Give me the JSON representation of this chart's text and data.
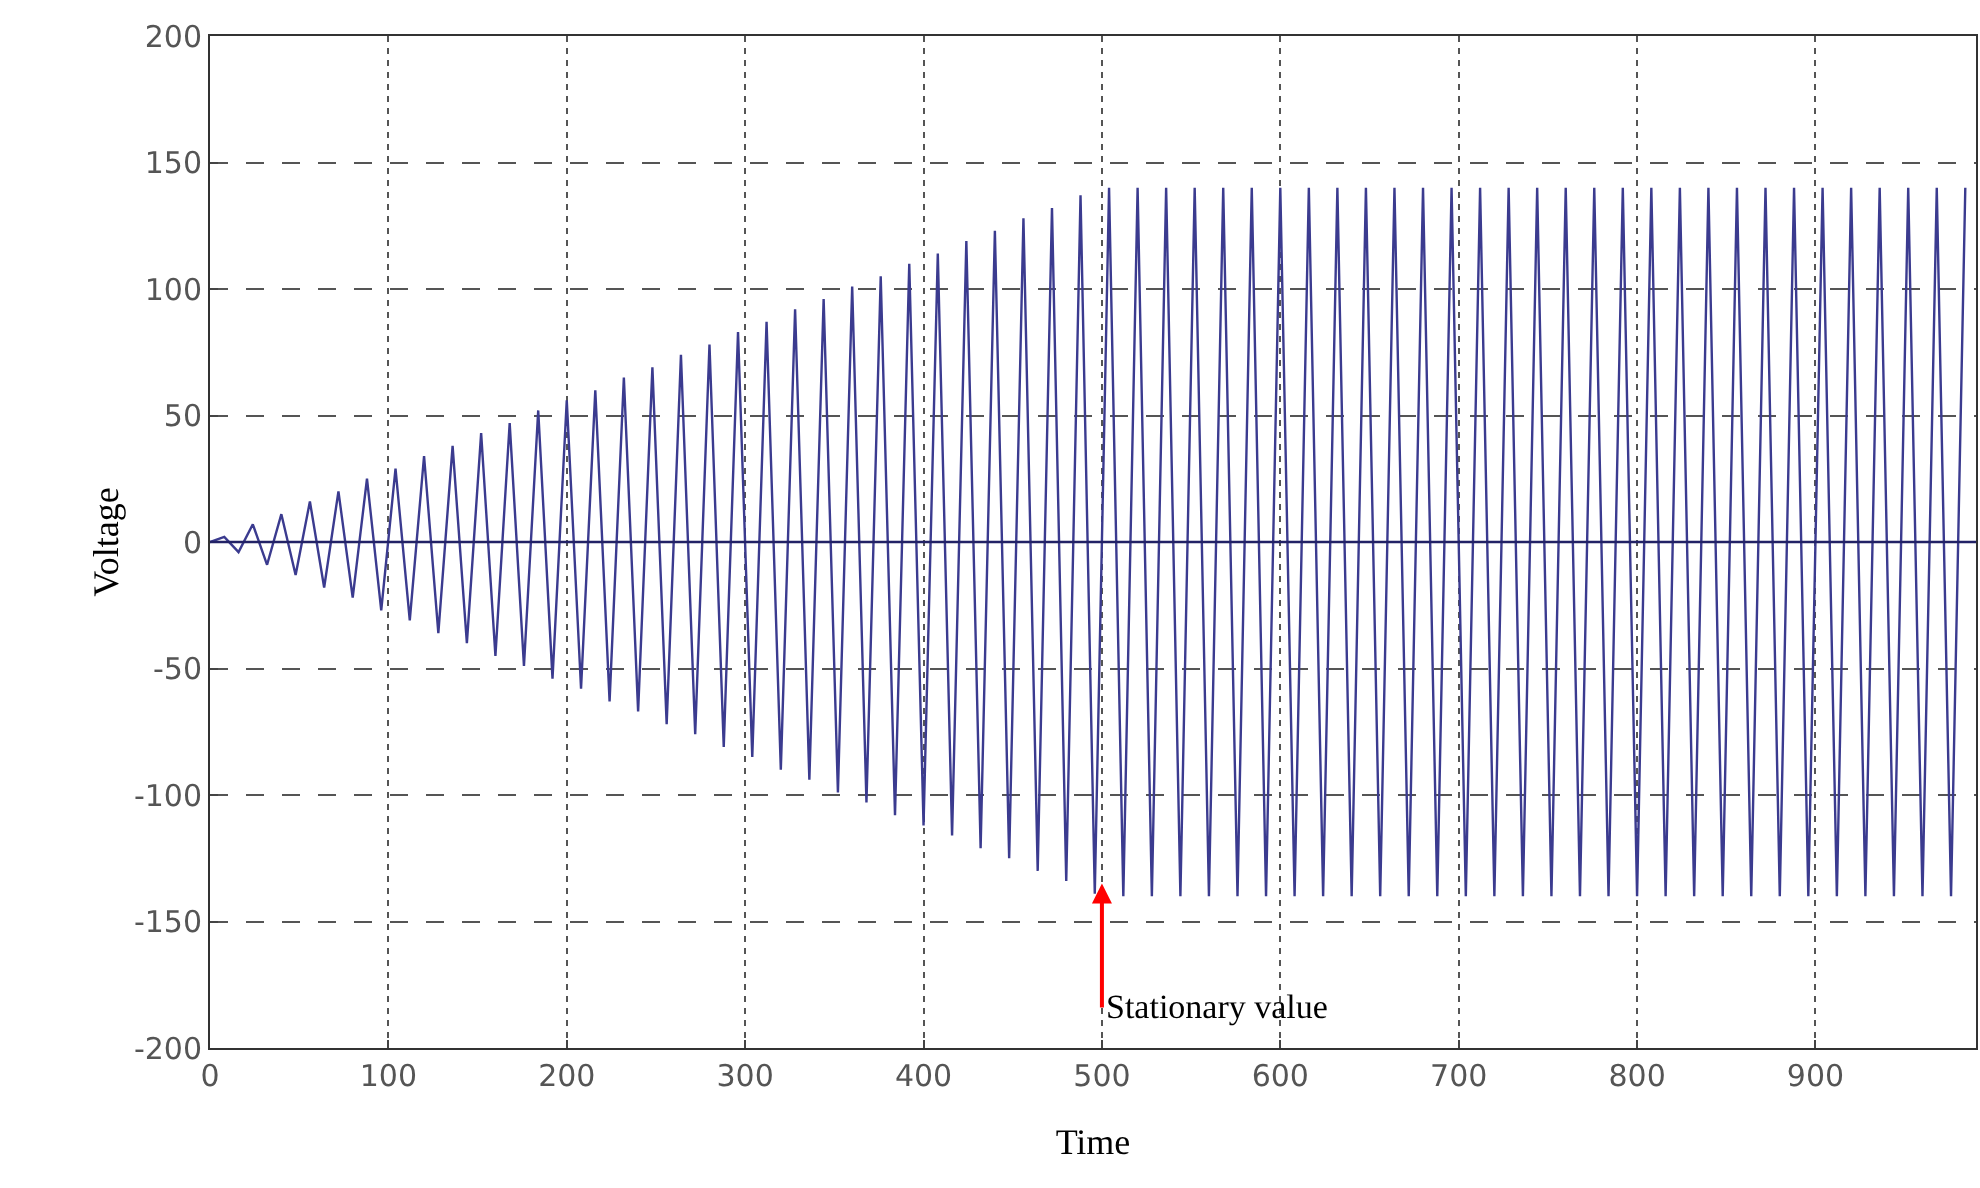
{
  "chart_data": {
    "type": "line",
    "xlabel": "Time",
    "ylabel": "Voltage",
    "xlim": [
      0,
      990
    ],
    "xticks": [
      0,
      100,
      200,
      300,
      400,
      500,
      600,
      700,
      800,
      900
    ],
    "ylim": [
      -200,
      200
    ],
    "yticks": [
      -200,
      -150,
      -100,
      -50,
      0,
      50,
      100,
      150,
      200
    ],
    "grid": true,
    "ref_lines": [
      {
        "axis": "y",
        "value": 0,
        "color": "#222266",
        "line_style": "solid"
      }
    ],
    "marker": "none",
    "line_style": "solid",
    "annotations": [
      {
        "text": "Stationary value",
        "x": 500,
        "y": -135
      }
    ],
    "series": [
      {
        "color": "#3b3b8f",
        "x": [
          0,
          8,
          16,
          24,
          32,
          40,
          48,
          56,
          64,
          72,
          80,
          88,
          96,
          104,
          112,
          120,
          128,
          136,
          144,
          152,
          160,
          168,
          176,
          184,
          192,
          200,
          208,
          216,
          224,
          232,
          240,
          248,
          256,
          264,
          272,
          280,
          288,
          296,
          304,
          312,
          320,
          328,
          336,
          344,
          352,
          360,
          368,
          376,
          384,
          392,
          400,
          408,
          416,
          424,
          432,
          440,
          448,
          456,
          464,
          472,
          480,
          488,
          496,
          504,
          512,
          520,
          528,
          536,
          544,
          552,
          560,
          568,
          576,
          584,
          592,
          600,
          608,
          616,
          624,
          632,
          640,
          648,
          656,
          664,
          672,
          680,
          688,
          696,
          704,
          712,
          720,
          728,
          736,
          744,
          752,
          760,
          768,
          776,
          784,
          792,
          800,
          808,
          816,
          824,
          832,
          840,
          848,
          856,
          864,
          872,
          880,
          888,
          896,
          904,
          912,
          920,
          928,
          936,
          944,
          952,
          960,
          968,
          976,
          984
        ],
        "values": [
          0,
          2,
          -4,
          7,
          -9,
          11,
          -13,
          16,
          -18,
          20,
          -22,
          25,
          -27,
          29,
          -31,
          34,
          -36,
          38,
          -40,
          43,
          -45,
          47,
          -49,
          52,
          -54,
          56,
          -58,
          60,
          -63,
          65,
          -67,
          69,
          -72,
          74,
          -76,
          78,
          -81,
          83,
          -85,
          87,
          -90,
          92,
          -94,
          96,
          -99,
          101,
          -103,
          105,
          -108,
          110,
          -112,
          114,
          -116,
          119,
          -121,
          123,
          -125,
          128,
          -130,
          132,
          -134,
          137,
          -139,
          140,
          -140,
          140,
          -140,
          140,
          -140,
          140,
          -140,
          140,
          -140,
          140,
          -140,
          140,
          -140,
          140,
          -140,
          140,
          -140,
          140,
          -140,
          140,
          -140,
          140,
          -140,
          140,
          -140,
          140,
          -140,
          140,
          -140,
          140,
          -140,
          140,
          -140,
          140,
          -140,
          140,
          -140,
          140,
          -140,
          140,
          -140,
          140,
          -140,
          140,
          -140,
          140,
          -140,
          140,
          -140,
          140,
          -140,
          140,
          -140,
          140,
          -140,
          140,
          -140,
          140,
          -140,
          140
        ]
      }
    ]
  }
}
